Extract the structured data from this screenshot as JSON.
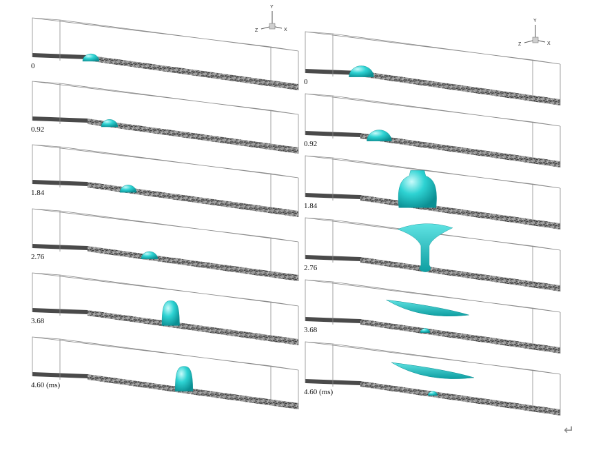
{
  "axis_triad": {
    "y": "Y",
    "x": "X",
    "z": "Z"
  },
  "columns": [
    {
      "panels": [
        {
          "label": "0",
          "drops": [
            {
              "kind": "cap",
              "position": 0.22,
              "size": 0.6
            }
          ]
        },
        {
          "label": "0.92",
          "drops": [
            {
              "kind": "cap",
              "position": 0.29,
              "size": 0.6
            }
          ]
        },
        {
          "label": "1.84",
          "drops": [
            {
              "kind": "cap",
              "position": 0.36,
              "size": 0.6
            }
          ]
        },
        {
          "label": "2.76",
          "drops": [
            {
              "kind": "cap",
              "position": 0.44,
              "size": 0.6
            }
          ]
        },
        {
          "label": "3.68",
          "drops": [
            {
              "kind": "tall",
              "position": 0.52,
              "size": 0.8
            }
          ]
        },
        {
          "label": "4.60 (ms)",
          "drops": [
            {
              "kind": "tall",
              "position": 0.57,
              "size": 0.8
            }
          ]
        }
      ]
    },
    {
      "panels": [
        {
          "label": "0",
          "drops": [
            {
              "kind": "cap",
              "position": 0.22,
              "size": 0.9
            }
          ]
        },
        {
          "label": "0.92",
          "drops": [
            {
              "kind": "cap",
              "position": 0.29,
              "size": 0.9
            }
          ]
        },
        {
          "label": "1.84",
          "drops": [
            {
              "kind": "vase",
              "position": 0.44,
              "size": 1.0
            }
          ]
        },
        {
          "label": "2.76",
          "drops": [
            {
              "kind": "cup",
              "position": 0.47,
              "size": 1.0
            }
          ]
        },
        {
          "label": "3.68",
          "drops": [
            {
              "kind": "sheet",
              "position": 0.48,
              "size": 1.0
            },
            {
              "kind": "cap",
              "position": 0.47,
              "size": 0.35
            }
          ]
        },
        {
          "label": "4.60 (ms)",
          "drops": [
            {
              "kind": "sheet",
              "position": 0.5,
              "size": 1.0
            },
            {
              "kind": "cap",
              "position": 0.5,
              "size": 0.35
            }
          ]
        }
      ]
    }
  ],
  "colors": {
    "droplet": "#2ed3d3",
    "droplet_dark": "#0b8f93",
    "substrate": "#4a4a4a",
    "box": "#8a8a8a"
  },
  "return_icon": "↵"
}
